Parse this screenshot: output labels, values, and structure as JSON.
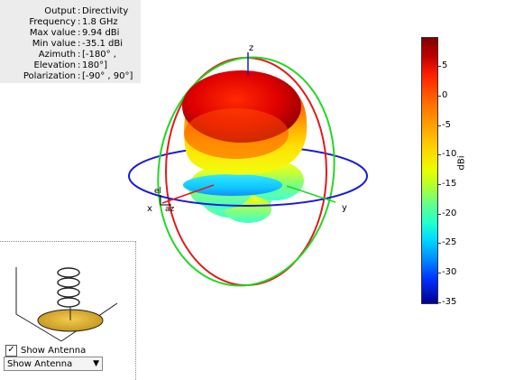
{
  "info": {
    "rows": [
      {
        "key": "Output",
        "value": "Directivity"
      },
      {
        "key": "Frequency",
        "value": "1.8 GHz"
      },
      {
        "key": "Max value",
        "value": "9.94 dBi"
      },
      {
        "key": "Min value",
        "value": "-35.1 dBi"
      },
      {
        "key": "Azimuth",
        "value": "[-180° ,"
      },
      {
        "key": "Elevation",
        "value": "180°]"
      },
      {
        "key": "Polarization",
        "value": "[-90° , 90°]"
      }
    ],
    "separator": ":"
  },
  "axes": {
    "z": "z",
    "x": "x",
    "y": "y",
    "el": "el",
    "az": "az"
  },
  "colorbar": {
    "unit": "dBi",
    "ticks": [
      "5",
      "0",
      "-5",
      "-10",
      "-15",
      "-20",
      "-25",
      "-30",
      "-35"
    ],
    "min": -35.1,
    "max": 9.94
  },
  "controls": {
    "show_antenna_checkbox": {
      "label": "Show Antenna",
      "checked": true,
      "mark": "✓"
    },
    "antenna_select": {
      "value": "Show Antenna",
      "arrow": "▼"
    }
  }
}
